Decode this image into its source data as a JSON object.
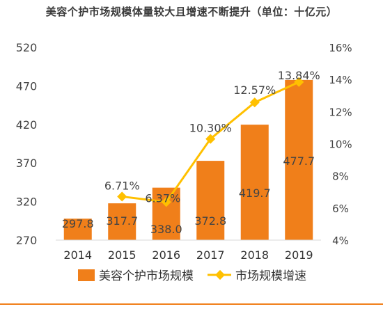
{
  "title": "美容个护市场规模体量较大且增速不断提升（单位：十亿元）",
  "colors": {
    "bar": "#F07F1A",
    "line": "#FFC000",
    "bottom_rule": "#F07F1A"
  },
  "chart_data": {
    "type": "bar",
    "categories": [
      "2014",
      "2015",
      "2016",
      "2017",
      "2018",
      "2019"
    ],
    "series": [
      {
        "name": "美容个护市场规模",
        "type": "bar",
        "axis": "left",
        "values": [
          297.8,
          317.7,
          338.0,
          372.8,
          419.7,
          477.7
        ],
        "labels": [
          "297.8",
          "317.7",
          "338.0",
          "372.8",
          "419.7",
          "477.7"
        ]
      },
      {
        "name": "市场规模增速",
        "type": "line",
        "axis": "right",
        "values": [
          null,
          6.71,
          6.37,
          10.3,
          12.57,
          13.84
        ],
        "labels": [
          "",
          "6.71%",
          "6.37%",
          "10.30%",
          "12.57%",
          "13.84%"
        ]
      }
    ],
    "left_axis": {
      "ticks": [
        "270",
        "320",
        "370",
        "420",
        "470",
        "520"
      ],
      "ylim": [
        270,
        520
      ]
    },
    "right_axis": {
      "ticks": [
        "4%",
        "6%",
        "8%",
        "10%",
        "12%",
        "14%",
        "16%"
      ],
      "ylim": [
        4,
        16
      ]
    },
    "legend": {
      "position": "bottom",
      "entries": [
        "美容个护市场规模",
        "市场规模增速"
      ]
    },
    "grid": false
  }
}
